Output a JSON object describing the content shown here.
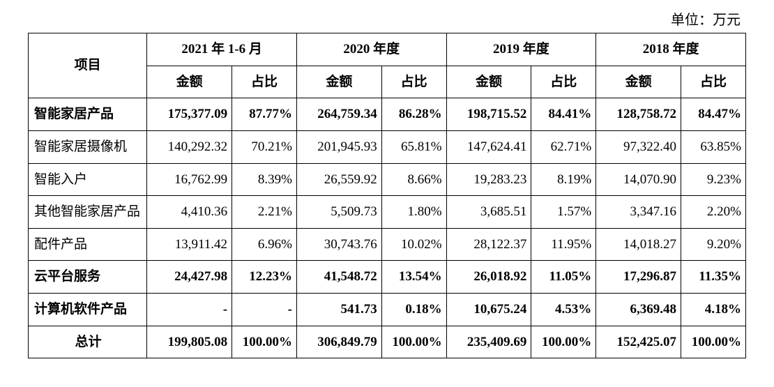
{
  "unit_label": "单位：万元",
  "headers": {
    "item": "项目",
    "periods": [
      "2021 年 1-6 月",
      "2020 年度",
      "2019 年度",
      "2018 年度"
    ],
    "sub": {
      "amount": "金额",
      "ratio": "占比"
    }
  },
  "style": {
    "font_family": "SimSun",
    "border_color": "#000000",
    "background_color": "#ffffff",
    "text_color": "#000000",
    "header_fontsize": 19,
    "cell_fontsize": 19,
    "unit_fontsize": 20,
    "column_widths_pct": [
      16.5,
      11.8,
      9.0,
      11.8,
      9.0,
      11.8,
      9.0,
      11.8,
      9.0
    ],
    "alignments": {
      "item": "left",
      "amount": "right",
      "ratio": "right",
      "header": "center",
      "total_item": "center"
    }
  },
  "rows": [
    {
      "bold": true,
      "item": "智能家居产品",
      "cells": [
        "175,377.09",
        "87.77%",
        "264,759.34",
        "86.28%",
        "198,715.52",
        "84.41%",
        "128,758.72",
        "84.47%"
      ]
    },
    {
      "bold": false,
      "item": "智能家居摄像机",
      "cells": [
        "140,292.32",
        "70.21%",
        "201,945.93",
        "65.81%",
        "147,624.41",
        "62.71%",
        "97,322.40",
        "63.85%"
      ]
    },
    {
      "bold": false,
      "item": "智能入户",
      "cells": [
        "16,762.99",
        "8.39%",
        "26,559.92",
        "8.66%",
        "19,283.23",
        "8.19%",
        "14,070.90",
        "9.23%"
      ]
    },
    {
      "bold": false,
      "item": "其他智能家居产品",
      "cells": [
        "4,410.36",
        "2.21%",
        "5,509.73",
        "1.80%",
        "3,685.51",
        "1.57%",
        "3,347.16",
        "2.20%"
      ]
    },
    {
      "bold": false,
      "item": "配件产品",
      "cells": [
        "13,911.42",
        "6.96%",
        "30,743.76",
        "10.02%",
        "28,122.37",
        "11.95%",
        "14,018.27",
        "9.20%"
      ]
    },
    {
      "bold": true,
      "item": "云平台服务",
      "cells": [
        "24,427.98",
        "12.23%",
        "41,548.72",
        "13.54%",
        "26,018.92",
        "11.05%",
        "17,296.87",
        "11.35%"
      ]
    },
    {
      "bold": true,
      "item": "计算机软件产品",
      "cells": [
        "-",
        "-",
        "541.73",
        "0.18%",
        "10,675.24",
        "4.53%",
        "6,369.48",
        "4.18%"
      ]
    }
  ],
  "total": {
    "item": "总计",
    "cells": [
      "199,805.08",
      "100.00%",
      "306,849.79",
      "100.00%",
      "235,409.69",
      "100.00%",
      "152,425.07",
      "100.00%"
    ]
  }
}
